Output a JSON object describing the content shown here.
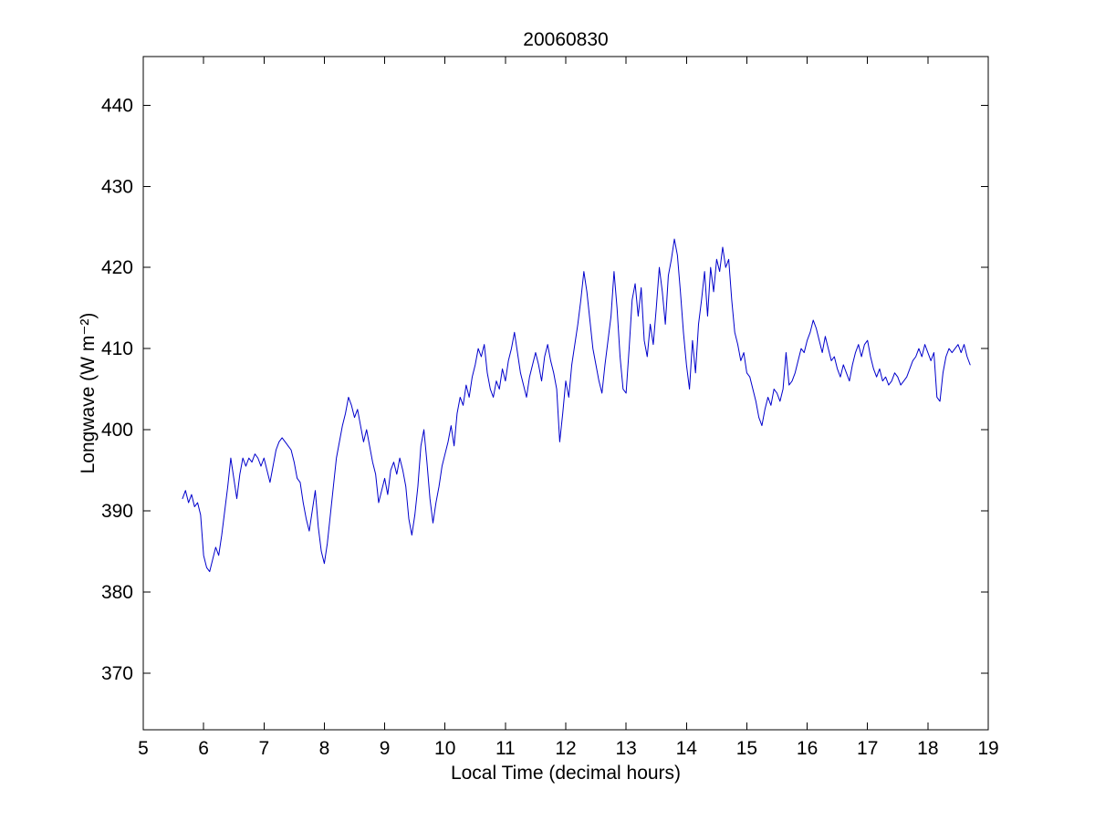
{
  "chart_data": {
    "type": "line",
    "title": "20060830",
    "xlabel": "Local Time (decimal hours)",
    "ylabel": "Longwave (W m⁻²)",
    "xlim": [
      5,
      19
    ],
    "ylim": [
      363,
      446
    ],
    "xticks": [
      5,
      6,
      7,
      8,
      9,
      10,
      11,
      12,
      13,
      14,
      15,
      16,
      17,
      18,
      19
    ],
    "yticks": [
      370,
      380,
      390,
      400,
      410,
      420,
      430,
      440
    ],
    "grid": false,
    "legend": null,
    "line_color": "#0000CC",
    "axis_color": "#000000",
    "series": [
      {
        "name": "longwave",
        "x_start": 5.65,
        "x_step": 0.05,
        "y": [
          391.5,
          392.5,
          391,
          392,
          390.5,
          391,
          389.5,
          384.5,
          383,
          382.5,
          384,
          385.5,
          384.5,
          387,
          390,
          393,
          396.5,
          394,
          391.5,
          394.5,
          396.5,
          395.5,
          396.5,
          396,
          397,
          396.5,
          395.5,
          396.5,
          395,
          393.5,
          395.5,
          397.5,
          398.5,
          399,
          398.5,
          398,
          397.5,
          396,
          394,
          393.5,
          391,
          389,
          387.5,
          390,
          392.5,
          388,
          385,
          383.5,
          386,
          389.5,
          393,
          396.5,
          398.5,
          400.5,
          402,
          404,
          403,
          401.5,
          402.5,
          400.5,
          398.5,
          400,
          398,
          396,
          394.5,
          391,
          392.5,
          394,
          392,
          395,
          396,
          394.5,
          396.5,
          395,
          393,
          389,
          387,
          389.5,
          393,
          398,
          400,
          396,
          391.5,
          388.5,
          391,
          393,
          395.5,
          397,
          398.5,
          400.5,
          398,
          402,
          404,
          403,
          405.5,
          404,
          406.5,
          408,
          410,
          409,
          410.5,
          407,
          405,
          404,
          406,
          405,
          407.5,
          406,
          408.5,
          410,
          412,
          409.5,
          407,
          405.5,
          404,
          406.5,
          408,
          409.5,
          408,
          406,
          409,
          410.5,
          408.5,
          407,
          405,
          398.5,
          402,
          406,
          404,
          408,
          410.5,
          413,
          416,
          419.5,
          417,
          413.5,
          410,
          408,
          406,
          404.5,
          408,
          411,
          414,
          419.5,
          415,
          409,
          405,
          404.5,
          410,
          416,
          418,
          414,
          417.5,
          411,
          409,
          413,
          410.5,
          415,
          420,
          417,
          413,
          419,
          421,
          423.5,
          421.5,
          417,
          412,
          408,
          405,
          411,
          407,
          413,
          416,
          419.5,
          414,
          420,
          417,
          421,
          419.5,
          422.5,
          420,
          421,
          416,
          412,
          410.5,
          408.5,
          409.5,
          407,
          406.5,
          405,
          403.5,
          401.5,
          400.5,
          402.5,
          404,
          403,
          405,
          404.5,
          403.5,
          405,
          409.5,
          405.5,
          406,
          407,
          408.5,
          410,
          409.5,
          411,
          412,
          413.5,
          412.5,
          411,
          409.5,
          411.5,
          410,
          408.5,
          409,
          407.5,
          406.5,
          408,
          407,
          406,
          408,
          409.5,
          410.5,
          409,
          410.5,
          411,
          409,
          407.5,
          406.5,
          407.5,
          406,
          406.5,
          405.5,
          406,
          407,
          406.5,
          405.5,
          406,
          406.5,
          407.5,
          408.5,
          409,
          410,
          409,
          410.5,
          409.5,
          408.5,
          409.5,
          404,
          403.5,
          407,
          409,
          410,
          409.5,
          410,
          410.5,
          409.5,
          410.5,
          409,
          408
        ]
      }
    ]
  }
}
